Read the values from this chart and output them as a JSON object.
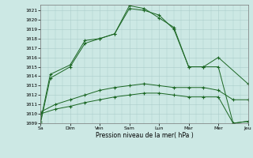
{
  "background_color": "#cce8e4",
  "grid_color": "#aaccca",
  "line_color": "#1a6622",
  "xlabel": "Pression niveau de la mer( hPa )",
  "ylim_min": 1009,
  "ylim_max": 1021.6,
  "yticks": [
    1009,
    1010,
    1011,
    1012,
    1013,
    1014,
    1015,
    1016,
    1017,
    1018,
    1019,
    1020,
    1021
  ],
  "x_labels": [
    "Sa",
    "Dim",
    "Ven",
    "Sam",
    "Lun",
    "Mar",
    "Mer",
    "Jeu"
  ],
  "x_positions": [
    0,
    1,
    2,
    3,
    4,
    5,
    6,
    7
  ],
  "xlim_min": 0,
  "xlim_max": 7,
  "line1_x": [
    0,
    0.33,
    1.0,
    1.5,
    2.0,
    2.5,
    3.0,
    3.5,
    4.0,
    4.5,
    5.0,
    5.5,
    6.0,
    7.0
  ],
  "line1_y": [
    1009.0,
    1013.8,
    1015.0,
    1017.5,
    1018.0,
    1018.5,
    1021.2,
    1021.0,
    1020.5,
    1019.0,
    1015.0,
    1015.0,
    1016.0,
    1013.2
  ],
  "line2_x": [
    0,
    0.33,
    1.0,
    1.5,
    2.0,
    2.5,
    3.0,
    3.5,
    4.0,
    4.5,
    5.0,
    5.5,
    6.0,
    6.5,
    7.0
  ],
  "line2_y": [
    1009.2,
    1014.2,
    1015.2,
    1017.8,
    1018.0,
    1018.5,
    1021.5,
    1021.2,
    1020.2,
    1019.2,
    1015.0,
    1015.0,
    1015.0,
    1009.0,
    1009.2
  ],
  "line3_x": [
    0,
    0.5,
    1.0,
    1.5,
    2.0,
    2.5,
    3.0,
    3.5,
    4.0,
    4.5,
    5.0,
    5.5,
    6.0,
    6.5,
    7.0
  ],
  "line3_y": [
    1010.2,
    1011.0,
    1011.5,
    1012.0,
    1012.5,
    1012.8,
    1013.0,
    1013.2,
    1013.0,
    1012.8,
    1012.8,
    1012.8,
    1012.5,
    1011.5,
    1011.5
  ],
  "line4_x": [
    0,
    0.5,
    1.0,
    1.5,
    2.0,
    2.5,
    3.0,
    3.5,
    4.0,
    4.5,
    5.0,
    5.5,
    6.0,
    6.5,
    7.0
  ],
  "line4_y": [
    1010.0,
    1010.5,
    1010.8,
    1011.2,
    1011.5,
    1011.8,
    1012.0,
    1012.2,
    1012.2,
    1012.0,
    1011.8,
    1011.8,
    1011.8,
    1009.0,
    1009.2
  ]
}
